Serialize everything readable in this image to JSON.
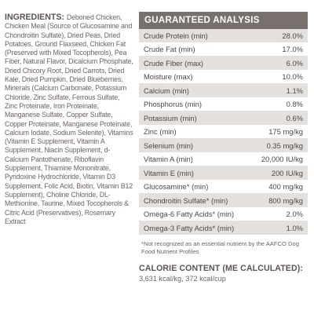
{
  "ingredients": {
    "heading": "INGREDIENTS:",
    "text": "Deboned Chicken, Chicken Meal (Source of Glucosamine and Chondroitin Sulfate), Dried Peas, Dried Potatoes, Ground Flaxseed, Chicken Fat (Preserved with Mixed Tocopherols), Pea Fiber, Natural Flavor, Dicalcium Phosphate, Dried Chicory Root, Dried Carrots, Dried Kale, Dried Pumpkin, Dried Blueberries, Minerals (Calcium Carbonate, Potassium Chloride, Zinc Sulfate, Ferrous Sulfate, Zinc Proteinate, Iron Proteinate, Manganese Sulfate, Copper Sulfate, Copper Proteinate, Manganese Proteinate, Calcium Iodate, Sodium Selenite), Vitamins (Vitamin E Supplement, Vitamin A Supplement, Niacin Supplement, d-Calcium Pantothenate, Riboflavin Supplement, Thiamine Mononitrate, Pyridoxine Hydrochloride, Vitamin D3 Supplement, Folic Acid, Biotin, Vitamin B12 Supplement), Choline Chloride, DL-Methionine, Taurine, Mixed Tocopherols & Citric Acid (Preservatives), Rosemary Extract"
  },
  "analysis": {
    "heading": "GUARANTEED ANALYSIS",
    "rows": [
      {
        "label": "Crude Protein (min)",
        "value": "28.0%"
      },
      {
        "label": "Crude Fat (min)",
        "value": "17.0%"
      },
      {
        "label": "Crude Fiber (max)",
        "value": "6.0%"
      },
      {
        "label": "Moisture (max)",
        "value": "10.0%"
      },
      {
        "label": "Calcium (min)",
        "value": "1.1%"
      },
      {
        "label": "Phosphorus (min)",
        "value": "0.8%"
      },
      {
        "label": "Potassium (min)",
        "value": "0.6%"
      },
      {
        "label": "Zinc (min)",
        "value": "175 mg/kg"
      },
      {
        "label": "Selenium (min)",
        "value": "0.35 mg/kg"
      },
      {
        "label": "Vitamin A (min)",
        "value": "20,000 IU/kg"
      },
      {
        "label": "Vitamin E (min)",
        "value": "200 IU/kg"
      },
      {
        "label": "Glucosamine* (min)",
        "value": "400 mg/kg"
      },
      {
        "label": "Chondroitin Sulfate* (min)",
        "value": "800 mg/kg"
      },
      {
        "label": "Omega-6 Fatty Acids* (min)",
        "value": "2.0%"
      },
      {
        "label": "Omega-3 Fatty Acids* (min)",
        "value": "1.0%"
      }
    ],
    "footnote": "*Not recognized as an essential nutrient by the AAFCO Dog Food Nutrient Profiles"
  },
  "calorie": {
    "heading": "CALORIE CONTENT (ME CALCULATED):",
    "value": "3,631 kcal/kg, 372 kcal/cup"
  },
  "colors": {
    "header_bg": "#77706c",
    "row_shade": "#e3e0de",
    "text": "#4d4745"
  }
}
